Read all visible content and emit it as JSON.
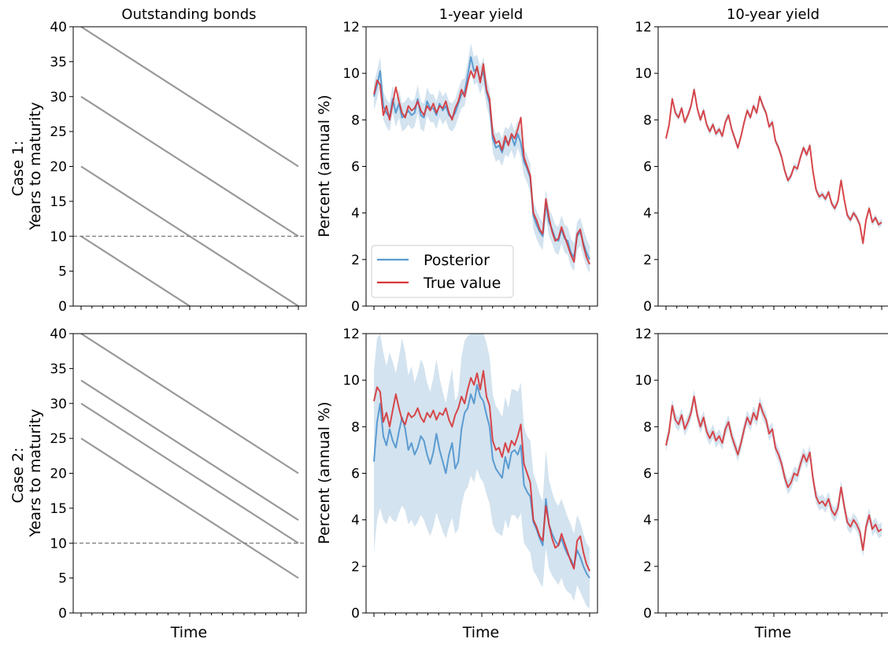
{
  "figure": {
    "col_titles": [
      "Outstanding bonds",
      "1-year yield",
      "10-year yield"
    ],
    "row_labels": [
      [
        "Case 1:",
        "Years to maturity"
      ],
      [
        "Case 2:",
        "Years to maturity"
      ]
    ],
    "xlabel": "Time",
    "yield_ylabel": "Percent (annual %)",
    "legend": [
      "Posterior",
      "True value"
    ],
    "colors": {
      "bond": "#999999",
      "reference": "#777777",
      "posterior": "#5b9bd1",
      "band": "#d3e3ef",
      "true": "#d6373b"
    }
  },
  "chart_data": [
    {
      "id": "bonds_case1",
      "type": "line",
      "title": "Outstanding bonds",
      "ylabel": "Case 1:\nYears to maturity",
      "xlabel": "",
      "ylim": [
        0,
        40
      ],
      "yticks": [
        0,
        5,
        10,
        15,
        20,
        25,
        30,
        35,
        40
      ],
      "xlim": [
        -0.05,
        1.05
      ],
      "series": [
        {
          "x": [
            0,
            1
          ],
          "y": [
            40,
            20
          ]
        },
        {
          "x": [
            0,
            1
          ],
          "y": [
            30,
            10
          ]
        },
        {
          "x": [
            0,
            1
          ],
          "y": [
            20,
            0
          ]
        },
        {
          "x": [
            0,
            0.5
          ],
          "y": [
            10,
            0
          ]
        }
      ],
      "hline": 10
    },
    {
      "id": "y1_case1",
      "type": "line",
      "title": "1-year yield",
      "ylabel": "Percent (annual %)",
      "ylim": [
        0,
        12
      ],
      "yticks": [
        0,
        2,
        4,
        6,
        8,
        10,
        12
      ],
      "legend": "lower-left",
      "true": [
        9.1,
        9.7,
        9.5,
        8.2,
        8.6,
        8.0,
        8.7,
        9.4,
        8.8,
        8.3,
        8.1,
        8.6,
        8.4,
        8.5,
        8.8,
        8.4,
        8.2,
        8.6,
        8.4,
        8.7,
        8.3,
        8.6,
        8.5,
        8.8,
        8.3,
        8.0,
        8.5,
        8.8,
        9.3,
        9.0,
        9.6,
        10.1,
        9.8,
        10.3,
        9.6,
        10.4,
        9.3,
        8.9,
        7.4,
        7.0,
        7.1,
        6.7,
        7.3,
        6.9,
        7.4,
        7.2,
        7.6,
        8.1,
        6.4,
        6.0,
        5.6,
        4.0,
        3.7,
        3.3,
        3.1,
        4.6,
        3.8,
        3.2,
        2.8,
        2.9,
        3.4,
        3.0,
        2.6,
        2.2,
        1.9,
        3.1,
        3.3,
        2.6,
        2.1,
        1.8
      ],
      "posterior": [
        9.0,
        9.5,
        10.1,
        8.6,
        8.3,
        8.1,
        8.9,
        8.3,
        8.7,
        8.1,
        8.2,
        8.4,
        8.2,
        8.3,
        8.9,
        8.2,
        8.1,
        8.8,
        8.5,
        8.5,
        8.2,
        8.7,
        8.4,
        8.6,
        8.2,
        8.1,
        8.3,
        8.7,
        9.1,
        9.2,
        9.9,
        10.7,
        10.1,
        10.2,
        9.7,
        10.1,
        9.2,
        8.7,
        7.2,
        6.8,
        6.9,
        6.6,
        7.1,
        7.0,
        7.3,
        6.9,
        7.4,
        7.0,
        6.2,
        5.9,
        5.5,
        3.9,
        3.5,
        3.2,
        3.0,
        4.4,
        3.6,
        3.3,
        2.9,
        2.8,
        3.3,
        2.9,
        2.8,
        2.3,
        2.1,
        3.0,
        3.2,
        2.7,
        2.3,
        2.0
      ],
      "band": 0.6
    },
    {
      "id": "y10_case1",
      "type": "line",
      "title": "10-year yield",
      "ylim": [
        0,
        12
      ],
      "yticks": [
        0,
        2,
        4,
        6,
        8,
        10,
        12
      ],
      "true": [
        7.2,
        7.8,
        8.9,
        8.3,
        8.1,
        8.5,
        7.9,
        8.2,
        8.6,
        9.3,
        8.5,
        8.0,
        8.4,
        7.8,
        7.5,
        7.8,
        7.4,
        7.6,
        7.3,
        7.9,
        8.2,
        7.6,
        7.2,
        6.8,
        7.3,
        7.9,
        8.4,
        8.1,
        8.6,
        8.3,
        9.0,
        8.6,
        8.3,
        7.7,
        7.9,
        7.1,
        6.8,
        6.4,
        5.8,
        5.4,
        5.6,
        6.0,
        5.9,
        6.4,
        6.8,
        6.5,
        6.9,
        5.8,
        5.0,
        4.7,
        4.8,
        4.6,
        4.9,
        4.4,
        4.2,
        4.5,
        5.4,
        4.6,
        3.9,
        3.7,
        4.0,
        3.8,
        3.5,
        2.7,
        3.7,
        4.2,
        3.6,
        3.8,
        3.5,
        3.6
      ],
      "band": 0.15
    },
    {
      "id": "bonds_case2",
      "type": "line",
      "ylabel": "Case 2:\nYears to maturity",
      "xlabel": "Time",
      "ylim": [
        0,
        40
      ],
      "yticks": [
        0,
        5,
        10,
        15,
        20,
        25,
        30,
        35,
        40
      ],
      "xlim": [
        -0.05,
        1.05
      ],
      "series": [
        {
          "x": [
            0,
            1
          ],
          "y": [
            40,
            20
          ]
        },
        {
          "x": [
            0,
            1
          ],
          "y": [
            33.3,
            13.3
          ]
        },
        {
          "x": [
            0,
            1
          ],
          "y": [
            30,
            10
          ]
        },
        {
          "x": [
            0,
            1
          ],
          "y": [
            25,
            5
          ]
        }
      ],
      "hline": 10
    },
    {
      "id": "y1_case2",
      "type": "line",
      "ylabel": "Percent (annual %)",
      "xlabel": "Time",
      "ylim": [
        0,
        12
      ],
      "yticks": [
        0,
        2,
        4,
        6,
        8,
        10,
        12
      ],
      "true": [
        9.1,
        9.7,
        9.5,
        8.2,
        8.6,
        8.0,
        8.7,
        9.4,
        8.8,
        8.3,
        8.1,
        8.6,
        8.4,
        8.5,
        8.8,
        8.4,
        8.2,
        8.6,
        8.4,
        8.7,
        8.3,
        8.6,
        8.5,
        8.8,
        8.3,
        8.0,
        8.5,
        8.8,
        9.3,
        9.0,
        9.6,
        10.1,
        9.8,
        10.3,
        9.6,
        10.4,
        9.3,
        8.9,
        7.4,
        7.0,
        7.1,
        6.7,
        7.3,
        6.9,
        7.4,
        7.2,
        7.6,
        8.1,
        6.4,
        6.0,
        5.6,
        4.0,
        3.7,
        3.3,
        3.1,
        4.6,
        3.8,
        3.2,
        2.8,
        2.9,
        3.4,
        3.0,
        2.6,
        2.2,
        1.9,
        3.1,
        3.3,
        2.6,
        2.1,
        1.8
      ],
      "posterior": [
        6.5,
        8.2,
        9.0,
        7.6,
        7.2,
        7.9,
        7.4,
        7.1,
        7.8,
        8.4,
        7.9,
        7.0,
        7.3,
        6.8,
        7.1,
        7.6,
        7.4,
        6.8,
        6.4,
        6.9,
        7.7,
        7.0,
        6.5,
        6.0,
        6.8,
        7.3,
        6.2,
        6.5,
        7.9,
        8.6,
        8.8,
        9.4,
        9.0,
        9.8,
        9.3,
        9.1,
        8.5,
        8.0,
        6.6,
        6.2,
        6.0,
        5.8,
        6.7,
        6.2,
        6.9,
        7.0,
        6.8,
        7.2,
        5.5,
        5.2,
        5.0,
        3.9,
        3.6,
        3.2,
        2.9,
        4.9,
        3.8,
        3.4,
        3.1,
        2.9,
        3.2,
        2.8,
        2.5,
        2.3,
        2.0,
        2.7,
        2.4,
        2.0,
        1.7,
        1.5
      ],
      "band_lower": [
        2.6,
        4.0,
        4.5,
        4.0,
        3.8,
        4.2,
        4.0,
        3.9,
        4.3,
        4.6,
        4.4,
        3.8,
        4.0,
        3.7,
        3.9,
        4.2,
        4.0,
        3.6,
        3.3,
        3.7,
        4.3,
        3.9,
        3.5,
        3.2,
        3.7,
        4.1,
        3.4,
        3.6,
        4.6,
        5.2,
        5.4,
        5.9,
        5.6,
        6.2,
        5.8,
        5.6,
        5.1,
        4.7,
        3.8,
        3.5,
        3.4,
        3.3,
        4.0,
        3.6,
        4.2,
        4.2,
        4.0,
        4.3,
        3.0,
        2.8,
        2.6,
        1.8,
        1.6,
        1.3,
        1.1,
        2.8,
        1.9,
        1.6,
        1.4,
        1.2,
        1.5,
        1.1,
        0.9,
        0.8,
        0.5,
        1.2,
        0.9,
        0.6,
        0.3,
        0.2
      ],
      "band_upper": [
        10.4,
        11.8,
        12.0,
        11.2,
        10.6,
        11.2,
        10.8,
        10.3,
        11.0,
        11.8,
        11.2,
        10.2,
        10.6,
        9.9,
        10.3,
        10.9,
        10.6,
        9.9,
        9.5,
        10.1,
        10.9,
        10.1,
        9.5,
        9.0,
        9.8,
        10.5,
        9.1,
        9.4,
        11.0,
        11.7,
        11.9,
        12.0,
        12.0,
        12.0,
        12.0,
        12.0,
        11.6,
        11.0,
        9.4,
        8.9,
        8.7,
        8.4,
        9.3,
        8.8,
        9.6,
        9.6,
        9.5,
        9.9,
        8.0,
        7.6,
        7.4,
        6.0,
        5.6,
        5.1,
        4.8,
        7.0,
        5.7,
        5.2,
        4.8,
        4.6,
        4.9,
        4.5,
        4.1,
        3.8,
        3.4,
        4.2,
        3.9,
        3.4,
        3.0,
        2.8
      ]
    },
    {
      "id": "y10_case2",
      "type": "line",
      "xlabel": "Time",
      "ylim": [
        0,
        12
      ],
      "yticks": [
        0,
        2,
        4,
        6,
        8,
        10,
        12
      ],
      "true": [
        7.2,
        7.8,
        8.9,
        8.3,
        8.1,
        8.5,
        7.9,
        8.2,
        8.6,
        9.3,
        8.5,
        8.0,
        8.4,
        7.8,
        7.5,
        7.8,
        7.4,
        7.6,
        7.3,
        7.9,
        8.2,
        7.6,
        7.2,
        6.8,
        7.3,
        7.9,
        8.4,
        8.1,
        8.6,
        8.3,
        9.0,
        8.6,
        8.3,
        7.7,
        7.9,
        7.1,
        6.8,
        6.4,
        5.8,
        5.4,
        5.6,
        6.0,
        5.9,
        6.4,
        6.8,
        6.5,
        6.9,
        5.8,
        5.0,
        4.7,
        4.8,
        4.6,
        4.9,
        4.4,
        4.2,
        4.5,
        5.4,
        4.6,
        3.9,
        3.7,
        4.0,
        3.8,
        3.5,
        2.7,
        3.7,
        4.2,
        3.6,
        3.8,
        3.5,
        3.6
      ],
      "band": 0.3
    }
  ]
}
